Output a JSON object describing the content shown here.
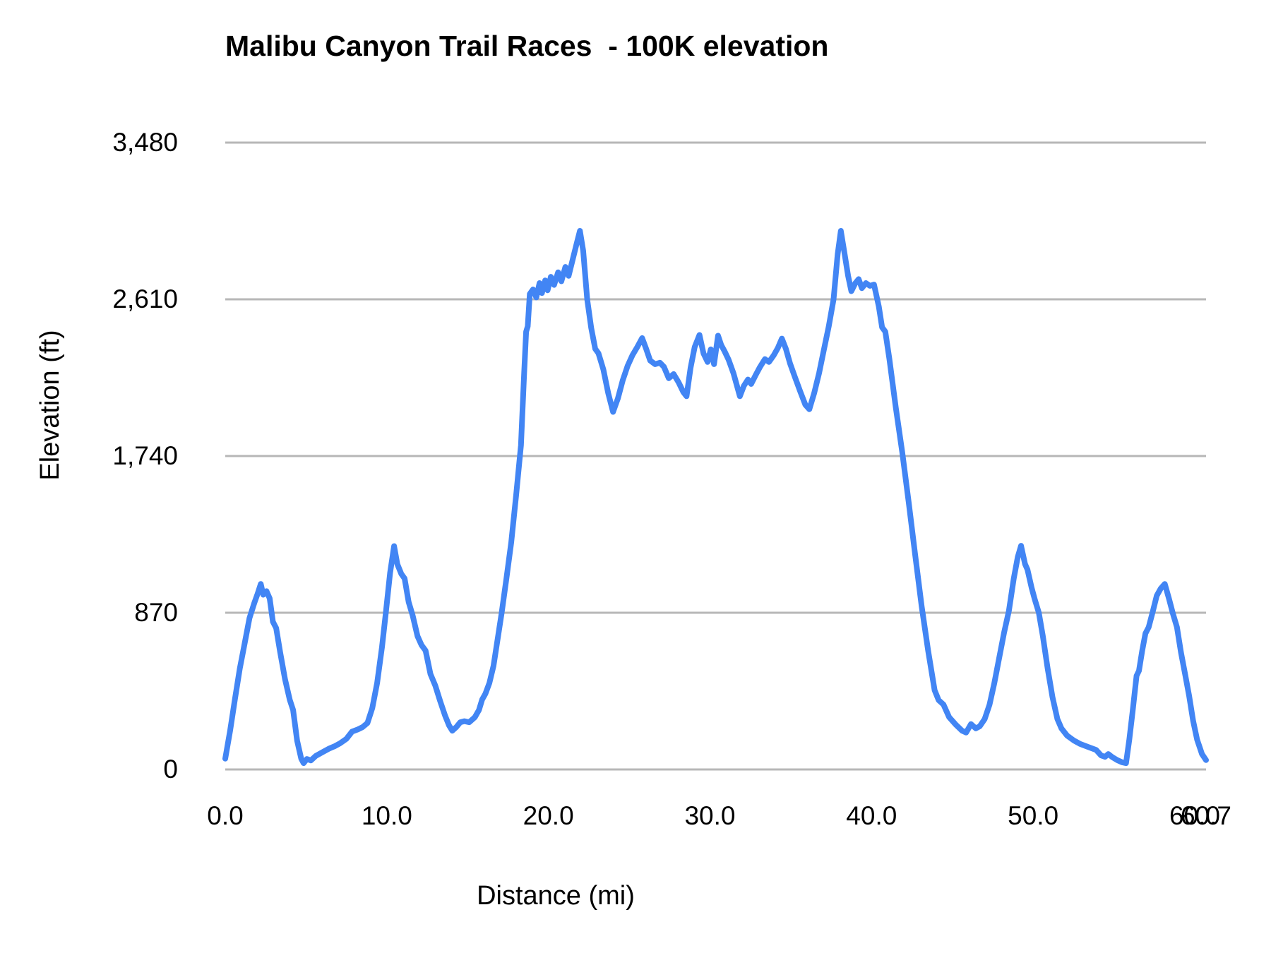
{
  "title": "Malibu Canyon Trail Races  - 100K elevation",
  "chart_data": {
    "type": "line",
    "title": "Malibu Canyon Trail Races  - 100K elevation",
    "xlabel": "Distance (mi)",
    "ylabel": "Elevation (ft)",
    "x_range": [
      0,
      60.7
    ],
    "y_range": [
      0,
      3480
    ],
    "grid": true,
    "legend": false,
    "line_color": "#4285f4",
    "gridline_color": "#b7b7b7",
    "background_color": "#ffffff",
    "xticks": [
      {
        "label": "0.0",
        "value": 0
      },
      {
        "label": "10.0",
        "value": 10
      },
      {
        "label": "20.0",
        "value": 20
      },
      {
        "label": "30.0",
        "value": 30
      },
      {
        "label": "40.0",
        "value": 40
      },
      {
        "label": "50.0",
        "value": 50
      },
      {
        "label": "60.0",
        "value": 60
      },
      {
        "label": "60.7",
        "value": 60.7
      }
    ],
    "yticks": [
      {
        "label": "0",
        "value": 0
      },
      {
        "label": "870",
        "value": 870
      },
      {
        "label": "1,740",
        "value": 1740
      },
      {
        "label": "2,610",
        "value": 2610
      },
      {
        "label": "3,480",
        "value": 3480
      }
    ],
    "series": [
      {
        "name": "elevation",
        "points": [
          [
            0.0,
            60
          ],
          [
            0.3,
            215
          ],
          [
            0.6,
            390
          ],
          [
            0.9,
            560
          ],
          [
            1.2,
            700
          ],
          [
            1.5,
            840
          ],
          [
            1.8,
            925
          ],
          [
            2.0,
            975
          ],
          [
            2.2,
            1030
          ],
          [
            2.35,
            970
          ],
          [
            2.55,
            990
          ],
          [
            2.75,
            950
          ],
          [
            2.95,
            820
          ],
          [
            3.15,
            785
          ],
          [
            3.4,
            650
          ],
          [
            3.7,
            500
          ],
          [
            4.0,
            385
          ],
          [
            4.2,
            330
          ],
          [
            4.45,
            160
          ],
          [
            4.7,
            60
          ],
          [
            4.85,
            35
          ],
          [
            5.05,
            58
          ],
          [
            5.3,
            50
          ],
          [
            5.6,
            75
          ],
          [
            6.0,
            95
          ],
          [
            6.4,
            115
          ],
          [
            6.8,
            130
          ],
          [
            7.1,
            145
          ],
          [
            7.5,
            170
          ],
          [
            7.85,
            210
          ],
          [
            8.2,
            222
          ],
          [
            8.5,
            235
          ],
          [
            8.8,
            258
          ],
          [
            9.1,
            340
          ],
          [
            9.4,
            480
          ],
          [
            9.7,
            680
          ],
          [
            9.95,
            880
          ],
          [
            10.2,
            1090
          ],
          [
            10.45,
            1240
          ],
          [
            10.65,
            1140
          ],
          [
            10.9,
            1085
          ],
          [
            11.1,
            1060
          ],
          [
            11.35,
            930
          ],
          [
            11.6,
            855
          ],
          [
            11.9,
            740
          ],
          [
            12.15,
            690
          ],
          [
            12.4,
            660
          ],
          [
            12.7,
            530
          ],
          [
            13.0,
            465
          ],
          [
            13.3,
            380
          ],
          [
            13.6,
            300
          ],
          [
            13.85,
            245
          ],
          [
            14.05,
            215
          ],
          [
            14.3,
            235
          ],
          [
            14.55,
            262
          ],
          [
            14.8,
            268
          ],
          [
            15.1,
            262
          ],
          [
            15.45,
            290
          ],
          [
            15.7,
            330
          ],
          [
            15.9,
            388
          ],
          [
            16.1,
            420
          ],
          [
            16.35,
            480
          ],
          [
            16.6,
            575
          ],
          [
            16.85,
            720
          ],
          [
            17.1,
            865
          ],
          [
            17.4,
            1060
          ],
          [
            17.7,
            1260
          ],
          [
            18.0,
            1520
          ],
          [
            18.3,
            1800
          ],
          [
            18.5,
            2200
          ],
          [
            18.62,
            2430
          ],
          [
            18.72,
            2460
          ],
          [
            18.85,
            2640
          ],
          [
            19.05,
            2665
          ],
          [
            19.25,
            2620
          ],
          [
            19.45,
            2700
          ],
          [
            19.6,
            2645
          ],
          [
            19.8,
            2715
          ],
          [
            19.95,
            2660
          ],
          [
            20.15,
            2735
          ],
          [
            20.35,
            2690
          ],
          [
            20.6,
            2760
          ],
          [
            20.8,
            2710
          ],
          [
            21.05,
            2790
          ],
          [
            21.25,
            2740
          ],
          [
            21.5,
            2830
          ],
          [
            21.75,
            2920
          ],
          [
            21.95,
            2990
          ],
          [
            22.15,
            2880
          ],
          [
            22.4,
            2610
          ],
          [
            22.65,
            2450
          ],
          [
            22.9,
            2335
          ],
          [
            23.1,
            2310
          ],
          [
            23.4,
            2220
          ],
          [
            23.7,
            2090
          ],
          [
            24.0,
            1985
          ],
          [
            24.3,
            2060
          ],
          [
            24.6,
            2160
          ],
          [
            24.9,
            2240
          ],
          [
            25.2,
            2300
          ],
          [
            25.5,
            2345
          ],
          [
            25.8,
            2395
          ],
          [
            26.05,
            2335
          ],
          [
            26.3,
            2270
          ],
          [
            26.6,
            2250
          ],
          [
            26.9,
            2258
          ],
          [
            27.15,
            2235
          ],
          [
            27.45,
            2172
          ],
          [
            27.75,
            2195
          ],
          [
            28.05,
            2150
          ],
          [
            28.35,
            2095
          ],
          [
            28.55,
            2072
          ],
          [
            28.8,
            2230
          ],
          [
            29.05,
            2345
          ],
          [
            29.35,
            2412
          ],
          [
            29.6,
            2310
          ],
          [
            29.85,
            2262
          ],
          [
            30.05,
            2332
          ],
          [
            30.25,
            2250
          ],
          [
            30.5,
            2408
          ],
          [
            30.7,
            2355
          ],
          [
            30.9,
            2322
          ],
          [
            31.15,
            2275
          ],
          [
            31.45,
            2200
          ],
          [
            31.7,
            2120
          ],
          [
            31.85,
            2072
          ],
          [
            32.1,
            2130
          ],
          [
            32.35,
            2165
          ],
          [
            32.55,
            2140
          ],
          [
            32.8,
            2185
          ],
          [
            33.1,
            2235
          ],
          [
            33.4,
            2278
          ],
          [
            33.65,
            2262
          ],
          [
            33.95,
            2300
          ],
          [
            34.2,
            2340
          ],
          [
            34.45,
            2392
          ],
          [
            34.7,
            2335
          ],
          [
            34.95,
            2255
          ],
          [
            35.25,
            2180
          ],
          [
            35.6,
            2095
          ],
          [
            35.9,
            2025
          ],
          [
            36.15,
            2000
          ],
          [
            36.45,
            2090
          ],
          [
            36.75,
            2200
          ],
          [
            37.05,
            2330
          ],
          [
            37.35,
            2460
          ],
          [
            37.65,
            2610
          ],
          [
            37.9,
            2860
          ],
          [
            38.1,
            2990
          ],
          [
            38.3,
            2880
          ],
          [
            38.55,
            2740
          ],
          [
            38.75,
            2655
          ],
          [
            39.0,
            2700
          ],
          [
            39.2,
            2722
          ],
          [
            39.4,
            2672
          ],
          [
            39.65,
            2700
          ],
          [
            39.9,
            2685
          ],
          [
            40.15,
            2692
          ],
          [
            40.45,
            2570
          ],
          [
            40.65,
            2455
          ],
          [
            40.85,
            2430
          ],
          [
            41.1,
            2280
          ],
          [
            41.5,
            2010
          ],
          [
            41.9,
            1760
          ],
          [
            42.3,
            1480
          ],
          [
            42.7,
            1190
          ],
          [
            43.1,
            905
          ],
          [
            43.5,
            660
          ],
          [
            43.9,
            440
          ],
          [
            44.15,
            385
          ],
          [
            44.45,
            360
          ],
          [
            44.8,
            290
          ],
          [
            45.2,
            250
          ],
          [
            45.6,
            215
          ],
          [
            45.85,
            205
          ],
          [
            46.15,
            252
          ],
          [
            46.45,
            228
          ],
          [
            46.7,
            240
          ],
          [
            47.0,
            280
          ],
          [
            47.3,
            360
          ],
          [
            47.6,
            480
          ],
          [
            47.9,
            620
          ],
          [
            48.2,
            760
          ],
          [
            48.5,
            880
          ],
          [
            48.8,
            1060
          ],
          [
            49.05,
            1180
          ],
          [
            49.25,
            1242
          ],
          [
            49.5,
            1140
          ],
          [
            49.65,
            1110
          ],
          [
            49.9,
            1010
          ],
          [
            50.1,
            945
          ],
          [
            50.35,
            870
          ],
          [
            50.6,
            740
          ],
          [
            50.9,
            560
          ],
          [
            51.2,
            400
          ],
          [
            51.5,
            280
          ],
          [
            51.75,
            228
          ],
          [
            52.1,
            188
          ],
          [
            52.5,
            162
          ],
          [
            52.9,
            142
          ],
          [
            53.4,
            125
          ],
          [
            53.9,
            108
          ],
          [
            54.2,
            78
          ],
          [
            54.45,
            70
          ],
          [
            54.65,
            86
          ],
          [
            54.9,
            68
          ],
          [
            55.2,
            52
          ],
          [
            55.5,
            40
          ],
          [
            55.75,
            35
          ],
          [
            55.95,
            165
          ],
          [
            56.15,
            318
          ],
          [
            56.4,
            520
          ],
          [
            56.55,
            548
          ],
          [
            56.75,
            660
          ],
          [
            56.95,
            755
          ],
          [
            57.15,
            790
          ],
          [
            57.4,
            875
          ],
          [
            57.65,
            965
          ],
          [
            57.9,
            1005
          ],
          [
            58.15,
            1030
          ],
          [
            58.4,
            950
          ],
          [
            58.65,
            865
          ],
          [
            58.9,
            790
          ],
          [
            59.15,
            650
          ],
          [
            59.4,
            530
          ],
          [
            59.65,
            410
          ],
          [
            59.9,
            270
          ],
          [
            60.15,
            165
          ],
          [
            60.45,
            85
          ],
          [
            60.7,
            52
          ]
        ]
      }
    ]
  }
}
